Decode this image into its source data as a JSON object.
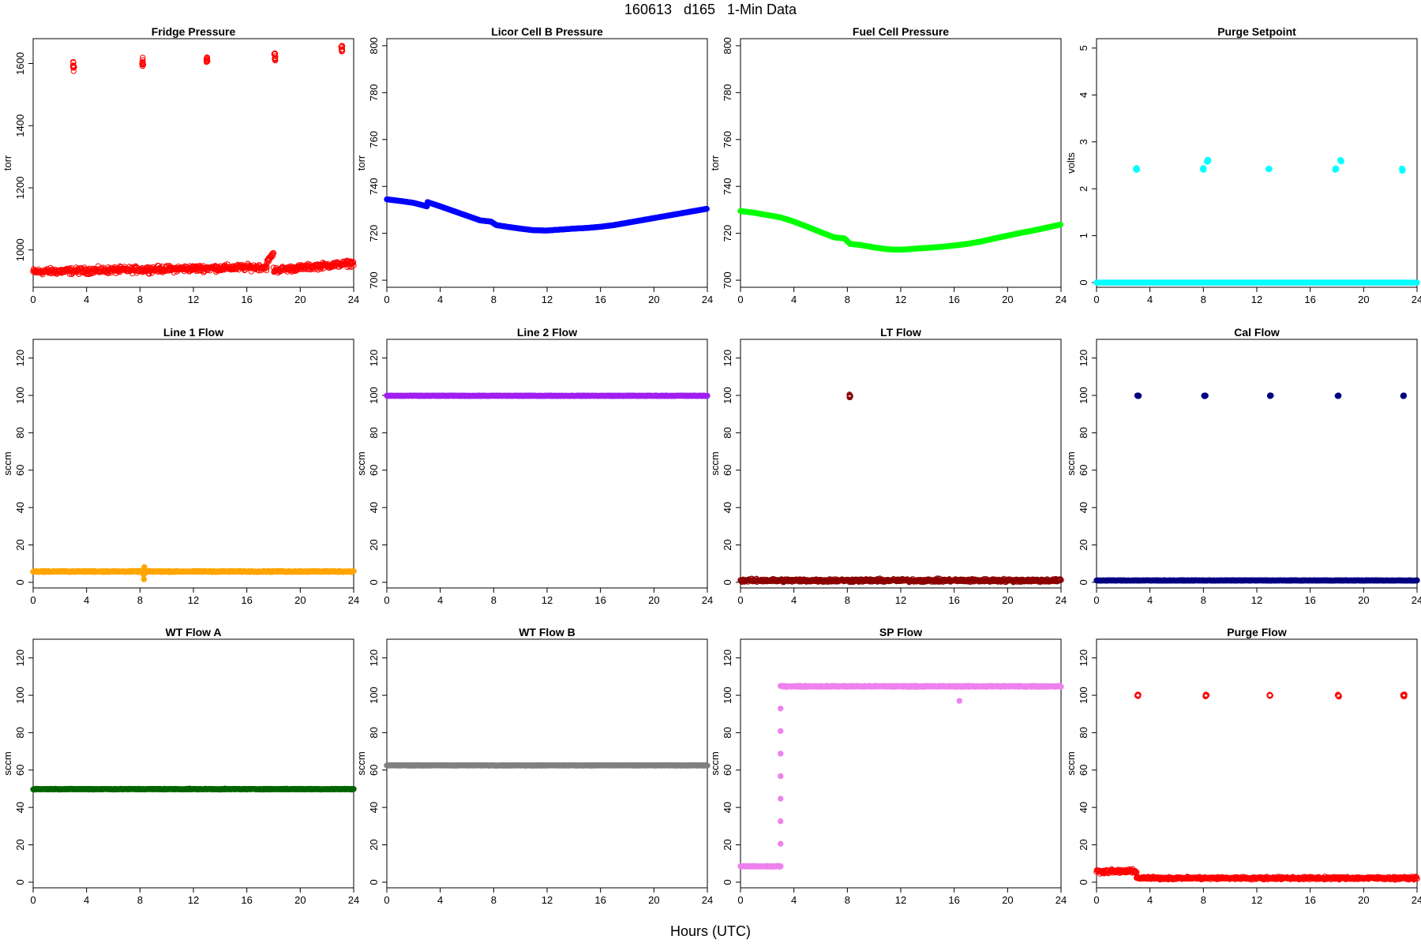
{
  "title": "160613   d165   1-Min Data",
  "xlabel": "Hours (UTC)",
  "chart_data": [
    {
      "type": "scatter",
      "title": "Fridge Pressure",
      "ylabel": "torr",
      "color": "#ff0000",
      "xlim": [
        0,
        24
      ],
      "ylim": [
        880,
        1680
      ],
      "xticks": [
        0,
        4,
        8,
        12,
        16,
        20,
        24
      ],
      "yticks": [
        1000,
        1200,
        1400,
        1600
      ],
      "filled": false,
      "series": [
        {
          "segments": [
            {
              "x": [
                0,
                17.5
              ],
              "y": [
                930,
                945
              ],
              "jitter": 15
            },
            {
              "x": [
                17.5,
                18
              ],
              "y": [
                960,
                990
              ],
              "jitter": 10
            },
            {
              "x": [
                18,
                24
              ],
              "y": [
                935,
                958
              ],
              "jitter": 14
            }
          ]
        },
        {
          "clusters": [
            {
              "x": 3.0,
              "y": 1590,
              "spread": 28
            },
            {
              "x": 8.2,
              "y": 1605,
              "spread": 25
            },
            {
              "x": 13.0,
              "y": 1610,
              "spread": 20
            },
            {
              "x": 18.1,
              "y": 1620,
              "spread": 22
            },
            {
              "x": 23.1,
              "y": 1645,
              "spread": 18
            }
          ]
        }
      ]
    },
    {
      "type": "scatter",
      "title": "Licor Cell B Pressure",
      "ylabel": "torr",
      "color": "#0000ff",
      "xlim": [
        0,
        24
      ],
      "ylim": [
        697,
        803
      ],
      "xticks": [
        0,
        4,
        8,
        12,
        16,
        20,
        24
      ],
      "yticks": [
        700,
        720,
        740,
        760,
        780,
        800
      ],
      "filled": true,
      "series": [
        {
          "points": [
            [
              0,
              734.5
            ],
            [
              1,
              733.8
            ],
            [
              2,
              733
            ],
            [
              3,
              731.5
            ],
            [
              3.05,
              733.3
            ],
            [
              4,
              731.5
            ],
            [
              5,
              729.5
            ],
            [
              6,
              727.5
            ],
            [
              7,
              725.5
            ],
            [
              7.8,
              725
            ],
            [
              8.2,
              723.5
            ],
            [
              9,
              722.8
            ],
            [
              10,
              722
            ],
            [
              11,
              721.3
            ],
            [
              12,
              721.2
            ],
            [
              13,
              721.6
            ],
            [
              14,
              722
            ],
            [
              15,
              722.3
            ],
            [
              16,
              722.8
            ],
            [
              17,
              723.5
            ],
            [
              18,
              724.5
            ],
            [
              19,
              725.5
            ],
            [
              20,
              726.5
            ],
            [
              21,
              727.5
            ],
            [
              22,
              728.5
            ],
            [
              23,
              729.5
            ],
            [
              24,
              730.5
            ]
          ]
        }
      ]
    },
    {
      "type": "scatter",
      "title": "Fuel Cell Pressure",
      "ylabel": "torr",
      "color": "#00ff00",
      "xlim": [
        0,
        24
      ],
      "ylim": [
        697,
        803
      ],
      "xticks": [
        0,
        4,
        8,
        12,
        16,
        20,
        24
      ],
      "yticks": [
        700,
        720,
        740,
        760,
        780,
        800
      ],
      "filled": true,
      "series": [
        {
          "points": [
            [
              0,
              729.5
            ],
            [
              1,
              728.8
            ],
            [
              2,
              727.8
            ],
            [
              3,
              726.8
            ],
            [
              4,
              725
            ],
            [
              5,
              722.8
            ],
            [
              6,
              720.5
            ],
            [
              7,
              718.3
            ],
            [
              7.8,
              717.8
            ],
            [
              8.2,
              715.5
            ],
            [
              9,
              715
            ],
            [
              10,
              714
            ],
            [
              11,
              713.2
            ],
            [
              12,
              713
            ],
            [
              13,
              713.4
            ],
            [
              14,
              713.8
            ],
            [
              15,
              714.2
            ],
            [
              16,
              714.8
            ],
            [
              17,
              715.5
            ],
            [
              18,
              716.5
            ],
            [
              19,
              717.8
            ],
            [
              20,
              719
            ],
            [
              21,
              720.2
            ],
            [
              22,
              721.3
            ],
            [
              23,
              722.5
            ],
            [
              24,
              723.8
            ]
          ]
        }
      ]
    },
    {
      "type": "scatter",
      "title": "Purge Setpoint",
      "ylabel": "volts",
      "color": "#00ffff",
      "xlim": [
        0,
        24
      ],
      "ylim": [
        -0.1,
        5.2
      ],
      "xticks": [
        0,
        4,
        8,
        12,
        16,
        20,
        24
      ],
      "yticks": [
        0,
        1,
        2,
        3,
        4,
        5
      ],
      "filled": true,
      "series": [
        {
          "segments": [
            {
              "x": [
                0,
                24
              ],
              "y": [
                0,
                0
              ],
              "jitter": 0
            }
          ]
        },
        {
          "clusters": [
            {
              "x": 3.0,
              "y": 2.42,
              "spread": 0.04
            },
            {
              "x": 8.0,
              "y": 2.42,
              "spread": 0.04
            },
            {
              "x": 8.3,
              "y": 2.6,
              "spread": 0.04
            },
            {
              "x": 12.9,
              "y": 2.42,
              "spread": 0.03
            },
            {
              "x": 17.9,
              "y": 2.42,
              "spread": 0.04
            },
            {
              "x": 18.3,
              "y": 2.6,
              "spread": 0.03
            },
            {
              "x": 22.9,
              "y": 2.4,
              "spread": 0.04
            }
          ]
        }
      ]
    },
    {
      "type": "scatter",
      "title": "Line 1 Flow",
      "ylabel": "sccm",
      "color": "#ffa500",
      "xlim": [
        0,
        24
      ],
      "ylim": [
        -3,
        130
      ],
      "xticks": [
        0,
        4,
        8,
        12,
        16,
        20,
        24
      ],
      "yticks": [
        0,
        20,
        40,
        60,
        80,
        100,
        120
      ],
      "filled": true,
      "series": [
        {
          "segments": [
            {
              "x": [
                0,
                24
              ],
              "y": [
                5.8,
                5.8
              ],
              "jitter": 0.4
            }
          ]
        },
        {
          "clusters": [
            {
              "x": 8.3,
              "y": 5,
              "spread": 9
            }
          ]
        }
      ]
    },
    {
      "type": "scatter",
      "title": "Line 2 Flow",
      "ylabel": "sccm",
      "color": "#a020f0",
      "xlim": [
        0,
        24
      ],
      "ylim": [
        -3,
        130
      ],
      "xticks": [
        0,
        4,
        8,
        12,
        16,
        20,
        24
      ],
      "yticks": [
        0,
        20,
        40,
        60,
        80,
        100,
        120
      ],
      "filled": true,
      "series": [
        {
          "segments": [
            {
              "x": [
                0,
                24
              ],
              "y": [
                99.8,
                99.8
              ],
              "jitter": 0.2
            }
          ]
        }
      ]
    },
    {
      "type": "scatter",
      "title": "LT Flow",
      "ylabel": "sccm",
      "color": "#8b0000",
      "xlim": [
        0,
        24
      ],
      "ylim": [
        -3,
        130
      ],
      "xticks": [
        0,
        4,
        8,
        12,
        16,
        20,
        24
      ],
      "yticks": [
        0,
        20,
        40,
        60,
        80,
        100,
        120
      ],
      "filled": false,
      "series": [
        {
          "segments": [
            {
              "x": [
                0,
                24
              ],
              "y": [
                1,
                1
              ],
              "jitter": 1.2
            }
          ]
        },
        {
          "clusters": [
            {
              "x": 8.2,
              "y": 99.5,
              "spread": 1.5
            }
          ]
        }
      ]
    },
    {
      "type": "scatter",
      "title": "Cal Flow",
      "ylabel": "sccm",
      "color": "#000080",
      "xlim": [
        0,
        24
      ],
      "ylim": [
        -3,
        130
      ],
      "xticks": [
        0,
        4,
        8,
        12,
        16,
        20,
        24
      ],
      "yticks": [
        0,
        20,
        40,
        60,
        80,
        100,
        120
      ],
      "filled": true,
      "series": [
        {
          "segments": [
            {
              "x": [
                0,
                24
              ],
              "y": [
                1,
                1
              ],
              "jitter": 0.2
            }
          ]
        },
        {
          "clusters": [
            {
              "x": 3.1,
              "y": 99.8,
              "spread": 0.3
            },
            {
              "x": 8.1,
              "y": 99.8,
              "spread": 0.3
            },
            {
              "x": 13.0,
              "y": 99.8,
              "spread": 0.3
            },
            {
              "x": 18.1,
              "y": 99.8,
              "spread": 0.3
            },
            {
              "x": 23.0,
              "y": 99.8,
              "spread": 0.3
            }
          ]
        }
      ]
    },
    {
      "type": "scatter",
      "title": "WT Flow A",
      "ylabel": "sccm",
      "color": "#006400",
      "xlim": [
        0,
        24
      ],
      "ylim": [
        -3,
        130
      ],
      "xticks": [
        0,
        4,
        8,
        12,
        16,
        20,
        24
      ],
      "yticks": [
        0,
        20,
        40,
        60,
        80,
        100,
        120
      ],
      "filled": true,
      "series": [
        {
          "segments": [
            {
              "x": [
                0,
                24
              ],
              "y": [
                49.8,
                49.8
              ],
              "jitter": 0.3
            }
          ]
        }
      ]
    },
    {
      "type": "scatter",
      "title": "WT Flow B",
      "ylabel": "sccm",
      "color": "#808080",
      "xlim": [
        0,
        24
      ],
      "ylim": [
        -3,
        130
      ],
      "xticks": [
        0,
        4,
        8,
        12,
        16,
        20,
        24
      ],
      "yticks": [
        0,
        20,
        40,
        60,
        80,
        100,
        120
      ],
      "filled": true,
      "series": [
        {
          "segments": [
            {
              "x": [
                0,
                24
              ],
              "y": [
                62.5,
                62.5
              ],
              "jitter": 0.2
            }
          ]
        }
      ]
    },
    {
      "type": "scatter",
      "title": "SP Flow",
      "ylabel": "sccm",
      "color": "#ee82ee",
      "xlim": [
        0,
        24
      ],
      "ylim": [
        -3,
        130
      ],
      "xticks": [
        0,
        4,
        8,
        12,
        16,
        20,
        24
      ],
      "yticks": [
        0,
        20,
        40,
        60,
        80,
        100,
        120
      ],
      "filled": true,
      "series": [
        {
          "segments": [
            {
              "x": [
                0,
                3
              ],
              "y": [
                8.5,
                8.5
              ],
              "jitter": 0.3
            },
            {
              "x": 3,
              "y2": 3.1,
              "y": [
                8.5,
                105
              ]
            },
            {
              "x": [
                3.1,
                24
              ],
              "y": [
                104.8,
                104.8
              ],
              "jitter": 0.4
            }
          ]
        },
        {
          "clusters": [
            {
              "x": 16.4,
              "y": 97,
              "spread": 0
            }
          ]
        }
      ]
    },
    {
      "type": "scatter",
      "title": "Purge Flow",
      "ylabel": "sccm",
      "color": "#ff0000",
      "xlim": [
        0,
        24
      ],
      "ylim": [
        -3,
        130
      ],
      "xticks": [
        0,
        4,
        8,
        12,
        16,
        20,
        24
      ],
      "yticks": [
        0,
        20,
        40,
        60,
        80,
        100,
        120
      ],
      "filled": false,
      "series": [
        {
          "segments": [
            {
              "x": [
                0,
                3
              ],
              "y": [
                5.8,
                5.8
              ],
              "jitter": 1.5
            },
            {
              "x": [
                3,
                24
              ],
              "y": [
                2.2,
                2.2
              ],
              "jitter": 1
            }
          ]
        },
        {
          "clusters": [
            {
              "x": 3.1,
              "y": 100,
              "spread": 0.8
            },
            {
              "x": 8.2,
              "y": 99.8,
              "spread": 0.8
            },
            {
              "x": 13.0,
              "y": 100,
              "spread": 0.8
            },
            {
              "x": 18.1,
              "y": 99.8,
              "spread": 0.8
            },
            {
              "x": 23.0,
              "y": 100,
              "spread": 1
            }
          ]
        }
      ]
    }
  ]
}
